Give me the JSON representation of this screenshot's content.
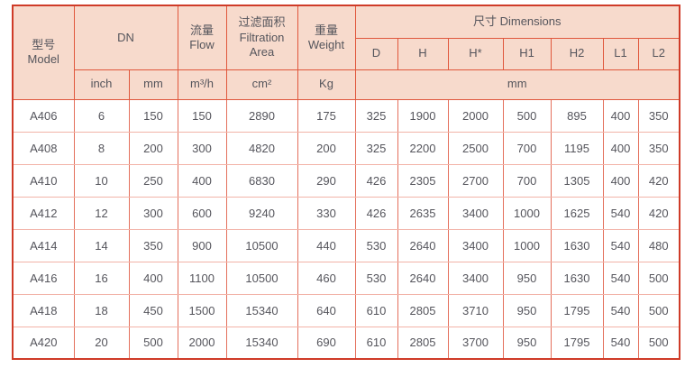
{
  "table": {
    "header": {
      "model": "型号\nModel",
      "dn": "DN",
      "flow": "流量\nFlow",
      "filtration": "过滤面积\nFiltration\nArea",
      "weight": "重量\nWeight",
      "dimensions": "尺寸 Dimensions",
      "dim_cols": [
        "D",
        "H",
        "H*",
        "H1",
        "H2",
        "L1",
        "L2"
      ],
      "units": {
        "dn_inch": "inch",
        "dn_mm": "mm",
        "flow": "m³/h",
        "filtration": "cm²",
        "weight": "Kg",
        "dimensions": "mm"
      }
    },
    "columns": [
      "Model",
      "DN inch",
      "DN mm",
      "Flow m³/h",
      "Filtration Area cm²",
      "Weight Kg",
      "D",
      "H",
      "H*",
      "H1",
      "H2",
      "L1",
      "L2"
    ],
    "rows": [
      [
        "A406",
        "6",
        "150",
        "150",
        "2890",
        "175",
        "325",
        "1900",
        "2000",
        "500",
        "895",
        "400",
        "350"
      ],
      [
        "A408",
        "8",
        "200",
        "300",
        "4820",
        "200",
        "325",
        "2200",
        "2500",
        "700",
        "1195",
        "400",
        "350"
      ],
      [
        "A410",
        "10",
        "250",
        "400",
        "6830",
        "290",
        "426",
        "2305",
        "2700",
        "700",
        "1305",
        "400",
        "420"
      ],
      [
        "A412",
        "12",
        "300",
        "600",
        "9240",
        "330",
        "426",
        "2635",
        "3400",
        "1000",
        "1625",
        "540",
        "420"
      ],
      [
        "A414",
        "14",
        "350",
        "900",
        "10500",
        "440",
        "530",
        "2640",
        "3400",
        "1000",
        "1630",
        "540",
        "480"
      ],
      [
        "A416",
        "16",
        "400",
        "1100",
        "10500",
        "460",
        "530",
        "2640",
        "3400",
        "950",
        "1630",
        "540",
        "500"
      ],
      [
        "A418",
        "18",
        "450",
        "1500",
        "15340",
        "640",
        "610",
        "2805",
        "3710",
        "950",
        "1795",
        "540",
        "500"
      ],
      [
        "A420",
        "20",
        "500",
        "2000",
        "15340",
        "690",
        "610",
        "2805",
        "3700",
        "950",
        "1795",
        "540",
        "500"
      ]
    ],
    "colors": {
      "header_bg": "#f7dacc",
      "outer_border": "#cf3b28",
      "header_grid": "#e0573c",
      "data_grid_vertical": "#e4705c",
      "data_grid_horizontal": "#f2b3a8",
      "text": "#55555c"
    }
  }
}
